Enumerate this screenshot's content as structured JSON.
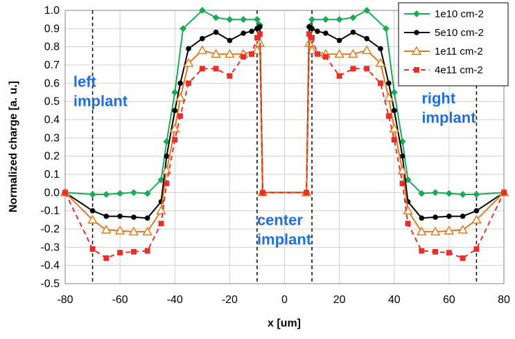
{
  "chart_data": {
    "type": "line",
    "title": "",
    "xlabel": "x [um]",
    "ylabel": "Normalized charge [a. u.]",
    "xlim": [
      -80,
      80
    ],
    "ylim": [
      -0.5,
      1.0
    ],
    "xticks": [
      "-80",
      "-60",
      "-40",
      "-20",
      "0",
      "20",
      "40",
      "60",
      "80"
    ],
    "yticks": [
      "1.0",
      "0.9",
      "0.8",
      "0.7",
      "0.6",
      "0.5",
      "0.4",
      "0.3",
      "0.2",
      "0.1",
      "0.0",
      "-0.1",
      "-0.2",
      "-0.3",
      "-0.4",
      "-0.5"
    ],
    "grid": true,
    "legend_position": "top-right",
    "vlines": [
      -70,
      -10,
      10,
      70
    ],
    "annotations": [
      {
        "lines": [
          "left",
          "implant"
        ],
        "x": -77,
        "y": 0.58,
        "color": "#1f6fdc"
      },
      {
        "lines": [
          "right",
          "implant"
        ],
        "x": 50,
        "y": 0.49,
        "color": "#1f6fdc"
      },
      {
        "lines": [
          "center",
          "implant"
        ],
        "x": -10,
        "y": -0.18,
        "color": "#1f6fdc"
      }
    ],
    "series": [
      {
        "name": "1e10 cm-2",
        "color": "#1aaa55",
        "marker": "diamond",
        "dashed": false,
        "points": [
          [
            -80,
            0.0
          ],
          [
            -70,
            -0.01
          ],
          [
            -65,
            -0.01
          ],
          [
            -60,
            -0.005
          ],
          [
            -55,
            0.0
          ],
          [
            -50,
            -0.005
          ],
          [
            -45,
            0.07
          ],
          [
            -43,
            0.28
          ],
          [
            -40,
            0.55
          ],
          [
            -37,
            0.9
          ],
          [
            -30,
            1.0
          ],
          [
            -25,
            0.96
          ],
          [
            -20,
            0.95
          ],
          [
            -15,
            0.95
          ],
          [
            -10,
            0.95
          ],
          [
            -9,
            0.92
          ],
          [
            -8,
            0.0
          ],
          [
            8,
            0.0
          ],
          [
            9,
            0.91
          ],
          [
            10,
            0.95
          ],
          [
            15,
            0.95
          ],
          [
            20,
            0.95
          ],
          [
            25,
            0.96
          ],
          [
            30,
            1.0
          ],
          [
            37,
            0.9
          ],
          [
            40,
            0.55
          ],
          [
            43,
            0.28
          ],
          [
            45,
            0.07
          ],
          [
            50,
            -0.005
          ],
          [
            55,
            0.0
          ],
          [
            60,
            -0.005
          ],
          [
            65,
            -0.01
          ],
          [
            70,
            -0.01
          ],
          [
            80,
            0.0
          ]
        ]
      },
      {
        "name": "5e10 cm-2",
        "color": "#000000",
        "marker": "circle",
        "dashed": false,
        "points": [
          [
            -80,
            0.0
          ],
          [
            -70,
            -0.1
          ],
          [
            -65,
            -0.13
          ],
          [
            -60,
            -0.13
          ],
          [
            -55,
            -0.135
          ],
          [
            -50,
            -0.14
          ],
          [
            -45,
            -0.05
          ],
          [
            -43,
            0.2
          ],
          [
            -40,
            0.45
          ],
          [
            -38,
            0.6
          ],
          [
            -35,
            0.79
          ],
          [
            -30,
            0.845
          ],
          [
            -25,
            0.88
          ],
          [
            -20,
            0.835
          ],
          [
            -15,
            0.875
          ],
          [
            -12,
            0.885
          ],
          [
            -10,
            0.9
          ],
          [
            -9,
            0.91
          ],
          [
            -8,
            0.0
          ],
          [
            8,
            0.0
          ],
          [
            9,
            0.91
          ],
          [
            10,
            0.9
          ],
          [
            12,
            0.885
          ],
          [
            15,
            0.875
          ],
          [
            20,
            0.835
          ],
          [
            25,
            0.88
          ],
          [
            30,
            0.845
          ],
          [
            35,
            0.79
          ],
          [
            38,
            0.6
          ],
          [
            40,
            0.45
          ],
          [
            43,
            0.2
          ],
          [
            45,
            -0.05
          ],
          [
            50,
            -0.14
          ],
          [
            55,
            -0.135
          ],
          [
            60,
            -0.13
          ],
          [
            65,
            -0.13
          ],
          [
            70,
            -0.1
          ],
          [
            80,
            0.0
          ]
        ]
      },
      {
        "name": "1e11 cm-2",
        "color": "#e07a1f",
        "marker": "triangle",
        "dashed": false,
        "points": [
          [
            -80,
            0.0
          ],
          [
            -70,
            -0.15
          ],
          [
            -65,
            -0.205
          ],
          [
            -60,
            -0.21
          ],
          [
            -55,
            -0.215
          ],
          [
            -50,
            -0.215
          ],
          [
            -45,
            -0.1
          ],
          [
            -43,
            0.12
          ],
          [
            -40,
            0.35
          ],
          [
            -38,
            0.52
          ],
          [
            -35,
            0.71
          ],
          [
            -30,
            0.78
          ],
          [
            -25,
            0.76
          ],
          [
            -20,
            0.76
          ],
          [
            -15,
            0.76
          ],
          [
            -10,
            0.78
          ],
          [
            -9,
            0.82
          ],
          [
            -8,
            0.0
          ],
          [
            8,
            0.0
          ],
          [
            9,
            0.82
          ],
          [
            10,
            0.78
          ],
          [
            15,
            0.76
          ],
          [
            20,
            0.76
          ],
          [
            25,
            0.76
          ],
          [
            30,
            0.78
          ],
          [
            35,
            0.71
          ],
          [
            38,
            0.52
          ],
          [
            40,
            0.35
          ],
          [
            43,
            0.12
          ],
          [
            45,
            -0.1
          ],
          [
            50,
            -0.215
          ],
          [
            55,
            -0.215
          ],
          [
            60,
            -0.21
          ],
          [
            65,
            -0.205
          ],
          [
            70,
            -0.15
          ],
          [
            80,
            0.0
          ]
        ]
      },
      {
        "name": "4e11 cm-2",
        "color": "#e8302a",
        "marker": "square",
        "dashed": true,
        "points": [
          [
            -80,
            0.0
          ],
          [
            -70,
            -0.31
          ],
          [
            -65,
            -0.36
          ],
          [
            -60,
            -0.33
          ],
          [
            -55,
            -0.325
          ],
          [
            -50,
            -0.32
          ],
          [
            -45,
            -0.17
          ],
          [
            -43,
            0.05
          ],
          [
            -40,
            0.29
          ],
          [
            -38,
            0.42
          ],
          [
            -35,
            0.6
          ],
          [
            -30,
            0.68
          ],
          [
            -25,
            0.68
          ],
          [
            -20,
            0.64
          ],
          [
            -15,
            0.745
          ],
          [
            -12,
            0.76
          ],
          [
            -10,
            0.85
          ],
          [
            -9,
            0.87
          ],
          [
            -8,
            0.0
          ],
          [
            8,
            0.0
          ],
          [
            9,
            0.87
          ],
          [
            10,
            0.85
          ],
          [
            12,
            0.76
          ],
          [
            15,
            0.745
          ],
          [
            20,
            0.64
          ],
          [
            25,
            0.68
          ],
          [
            30,
            0.68
          ],
          [
            35,
            0.6
          ],
          [
            38,
            0.42
          ],
          [
            40,
            0.29
          ],
          [
            43,
            0.05
          ],
          [
            45,
            -0.17
          ],
          [
            50,
            -0.32
          ],
          [
            55,
            -0.325
          ],
          [
            60,
            -0.33
          ],
          [
            65,
            -0.36
          ],
          [
            70,
            -0.31
          ],
          [
            80,
            0.0
          ]
        ]
      }
    ]
  }
}
